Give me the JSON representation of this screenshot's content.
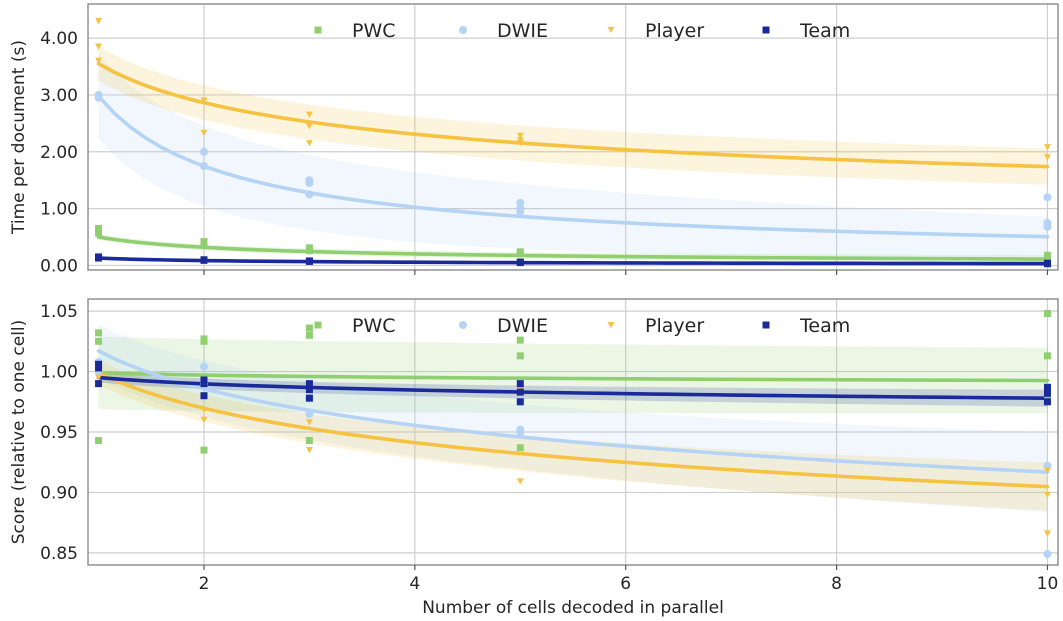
{
  "chart_data": [
    {
      "type": "scatter",
      "ylabel": "Time per document (s)",
      "xlabel": "",
      "xlim": [
        0.9,
        10.1
      ],
      "ylim": [
        -0.08,
        4.6
      ],
      "xticks": [
        2,
        4,
        6,
        8,
        10
      ],
      "xtick_labels_visible": false,
      "yticks": [
        0.0,
        1.0,
        2.0,
        3.0,
        4.0
      ],
      "ytick_labels": [
        "0.00",
        "1.00",
        "2.00",
        "3.00",
        "4.00"
      ],
      "grid": true,
      "legend": "top",
      "series": [
        {
          "name": "PWC",
          "color": "#8fcf70",
          "marker": "square",
          "x": [
            1,
            1,
            2,
            2,
            3,
            3,
            5,
            5,
            10,
            10
          ],
          "y": [
            0.65,
            0.57,
            0.42,
            0.36,
            0.31,
            0.26,
            0.24,
            0.21,
            0.18,
            0.12
          ],
          "fit": {
            "a": 0.5,
            "b": 0.65
          },
          "band": [
            0.05,
            0.07
          ]
        },
        {
          "name": "DWIE",
          "color": "#b4d3f5",
          "marker": "circle",
          "x": [
            1,
            1,
            2,
            2,
            3,
            3,
            3,
            5,
            5,
            5,
            10,
            10,
            10
          ],
          "y": [
            3.0,
            2.95,
            2.0,
            1.75,
            1.5,
            1.45,
            1.25,
            1.1,
            1.0,
            0.95,
            1.2,
            0.75,
            0.68
          ],
          "fit": {
            "a": 2.98,
            "b": 0.77
          },
          "band": [
            0.75,
            0.35
          ]
        },
        {
          "name": "Player",
          "color": "#f5c242",
          "marker": "triangle",
          "x": [
            1,
            1,
            1,
            2,
            2,
            3,
            3,
            3,
            5,
            5,
            5,
            10,
            10
          ],
          "y": [
            4.3,
            3.85,
            3.6,
            2.9,
            2.33,
            2.65,
            2.45,
            2.15,
            2.28,
            2.2,
            2.15,
            2.08,
            1.9
          ],
          "fit": {
            "a": 3.55,
            "b": 0.31
          },
          "band": [
            0.3,
            0.32
          ]
        },
        {
          "name": "Team",
          "color": "#1a2a9a",
          "marker": "square",
          "x": [
            1,
            1,
            2,
            2,
            3,
            3,
            5,
            5,
            10,
            10
          ],
          "y": [
            0.15,
            0.13,
            0.1,
            0.09,
            0.08,
            0.07,
            0.06,
            0.05,
            0.04,
            0.03
          ],
          "fit": {
            "a": 0.13,
            "b": 0.6
          },
          "band": [
            0.02,
            0.02
          ]
        }
      ]
    },
    {
      "type": "scatter",
      "ylabel": "Score (relative to one cell)",
      "xlabel": "Number of cells decoded in parallel",
      "xlim": [
        0.9,
        10.1
      ],
      "ylim": [
        0.84,
        1.06
      ],
      "xticks": [
        2,
        4,
        6,
        8,
        10
      ],
      "xtick_labels": [
        "2",
        "4",
        "6",
        "8",
        "10"
      ],
      "yticks": [
        0.85,
        0.9,
        0.95,
        1.0,
        1.05
      ],
      "ytick_labels": [
        "0.85",
        "0.90",
        "0.95",
        "1.00",
        "1.05"
      ],
      "grid": true,
      "legend": "top",
      "series": [
        {
          "name": "PWC",
          "color": "#8fcf70",
          "marker": "square",
          "x": [
            1,
            1,
            1,
            2,
            2,
            2,
            3,
            3,
            3,
            5,
            5,
            5,
            10,
            10,
            10
          ],
          "y": [
            1.032,
            1.025,
            0.943,
            1.027,
            1.025,
            0.935,
            1.036,
            1.03,
            0.943,
            1.026,
            1.013,
            0.937,
            1.048,
            1.013,
            0.978
          ],
          "fit": {
            "a": 0.999,
            "b": 0.0028
          },
          "band": [
            0.03,
            0.027
          ]
        },
        {
          "name": "DWIE",
          "color": "#b4d3f5",
          "marker": "circle",
          "x": [
            1,
            1,
            2,
            2,
            3,
            3,
            5,
            5,
            5,
            10,
            10
          ],
          "y": [
            1.008,
            1.0,
            1.004,
            0.99,
            0.978,
            0.965,
            0.975,
            0.952,
            0.95,
            0.922,
            0.849
          ],
          "fit": {
            "a": 1.017,
            "b": 0.045
          },
          "band": [
            0.022,
            0.033
          ]
        },
        {
          "name": "Player",
          "color": "#f5c242",
          "marker": "triangle",
          "x": [
            1,
            1,
            2,
            2,
            3,
            3,
            5,
            5,
            10,
            10,
            10
          ],
          "y": [
            1.003,
            0.995,
            0.968,
            0.96,
            0.958,
            0.935,
            0.985,
            0.909,
            0.918,
            0.898,
            0.866
          ],
          "fit": {
            "a": 0.999,
            "b": 0.043
          },
          "band": [
            0.01,
            0.02
          ]
        },
        {
          "name": "Team",
          "color": "#1a2a9a",
          "marker": "square",
          "x": [
            1,
            1,
            1,
            2,
            2,
            2,
            3,
            3,
            3,
            5,
            5,
            5,
            10,
            10,
            10
          ],
          "y": [
            1.006,
            1.003,
            0.99,
            0.993,
            0.99,
            0.98,
            0.99,
            0.985,
            0.978,
            0.99,
            0.983,
            0.975,
            0.987,
            0.982,
            0.975
          ],
          "fit": {
            "a": 0.995,
            "b": 0.0075
          },
          "band": [
            0.004,
            0.007
          ]
        }
      ]
    }
  ],
  "legend_items": [
    "PWC",
    "DWIE",
    "Player",
    "Team"
  ]
}
